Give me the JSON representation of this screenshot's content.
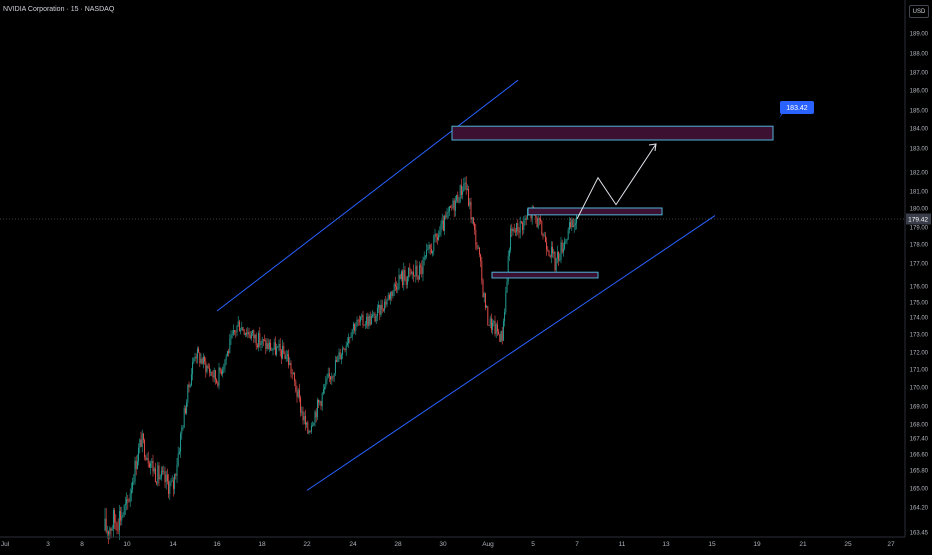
{
  "header": {
    "title": "NVIDIA Corporation · 15 · NASDAQ",
    "currency": "USD"
  },
  "colors": {
    "background": "#000000",
    "up": "#26a69a",
    "down": "#ef5350",
    "trendline": "#2962ff",
    "zone_fill": "#3b1030",
    "zone_border": "#4fb3d9",
    "arrow": "#e0e3eb",
    "price_line": "#d1d4dc",
    "target_label_bg": "#2962ff",
    "current_label_bg": "#3a3e4a"
  },
  "price_axis": {
    "labels": [
      "189.00",
      "188.00",
      "187.00",
      "186.00",
      "185.00",
      "184.00",
      "183.00",
      "182.00",
      "181.00",
      "180.00",
      "179.00",
      "178.00",
      "177.00",
      "176.00",
      "175.00",
      "174.00",
      "173.00",
      "172.00",
      "171.00",
      "170.00",
      "169.00",
      "168.00",
      "167.40",
      "166.60",
      "165.80",
      "165.00",
      "164.20",
      "163.45"
    ],
    "current_price": "179.42",
    "target_price": "183.42"
  },
  "time_axis": {
    "labels": [
      "Jul",
      "3",
      "8",
      "10",
      "14",
      "16",
      "18",
      "22",
      "24",
      "28",
      "30",
      "Aug",
      "5",
      "7",
      "11",
      "13",
      "15",
      "19",
      "21",
      "25",
      "27"
    ]
  },
  "chart_data": {
    "type": "candlestick",
    "symbol": "NVIDIA Corporation",
    "interval": "15",
    "exchange": "NASDAQ",
    "ylim": [
      163.2,
      189.3
    ],
    "y_scale": "log",
    "last_price": 179.42,
    "target_price": 183.42,
    "price_path": [
      {
        "x": "Jul 9",
        "y": 163.5
      },
      {
        "x": "Jul 10",
        "y": 164.2
      },
      {
        "x": "Jul 10",
        "y": 167.3
      },
      {
        "x": "Jul 11",
        "y": 165.7
      },
      {
        "x": "Jul 14",
        "y": 165.0
      },
      {
        "x": "Jul 15",
        "y": 172.0
      },
      {
        "x": "Jul 16",
        "y": 170.4
      },
      {
        "x": "Jul 17",
        "y": 173.6
      },
      {
        "x": "Jul 18",
        "y": 172.5
      },
      {
        "x": "Jul 21",
        "y": 171.8
      },
      {
        "x": "Jul 22",
        "y": 167.6
      },
      {
        "x": "Jul 23",
        "y": 170.6
      },
      {
        "x": "Jul 24",
        "y": 173.5
      },
      {
        "x": "Jul 25",
        "y": 174.0
      },
      {
        "x": "Jul 28",
        "y": 176.3
      },
      {
        "x": "Jul 29",
        "y": 176.6
      },
      {
        "x": "Jul 30",
        "y": 179.0
      },
      {
        "x": "Jul 31",
        "y": 181.5
      },
      {
        "x": "Jul 31",
        "y": 177.3
      },
      {
        "x": "Aug 1",
        "y": 173.8
      },
      {
        "x": "Aug 1",
        "y": 172.8
      },
      {
        "x": "Aug 4",
        "y": 178.5
      },
      {
        "x": "Aug 5",
        "y": 179.8
      },
      {
        "x": "Aug 5",
        "y": 178.1
      },
      {
        "x": "Aug 6",
        "y": 177.0
      },
      {
        "x": "Aug 6",
        "y": 178.8
      },
      {
        "x": "Aug 7",
        "y": 179.42
      }
    ],
    "channel": {
      "upper": [
        {
          "x": "Jul 16",
          "y": 174.4
        },
        {
          "x": "Aug 1",
          "y": 186.1
        }
      ],
      "lower": [
        {
          "x": "Jul 22",
          "y": 164.9
        },
        {
          "x": "Aug 14",
          "y": 179.6
        }
      ]
    },
    "zones": [
      {
        "from": "Jul 31",
        "to": "Aug 19",
        "top": 184.1,
        "bottom": 183.4
      },
      {
        "from": "Aug 5",
        "to": "Aug 13",
        "top": 180.0,
        "bottom": 179.64
      },
      {
        "from": "Aug 1",
        "to": "Aug 9",
        "top": 176.6,
        "bottom": 176.35
      }
    ],
    "projection": [
      {
        "x": "Aug 7",
        "y": 179.42
      },
      {
        "x": "Aug 8",
        "y": 181.7
      },
      {
        "x": "Aug 11",
        "y": 180.2
      },
      {
        "x": "Aug 13",
        "y": 183.2
      }
    ]
  }
}
